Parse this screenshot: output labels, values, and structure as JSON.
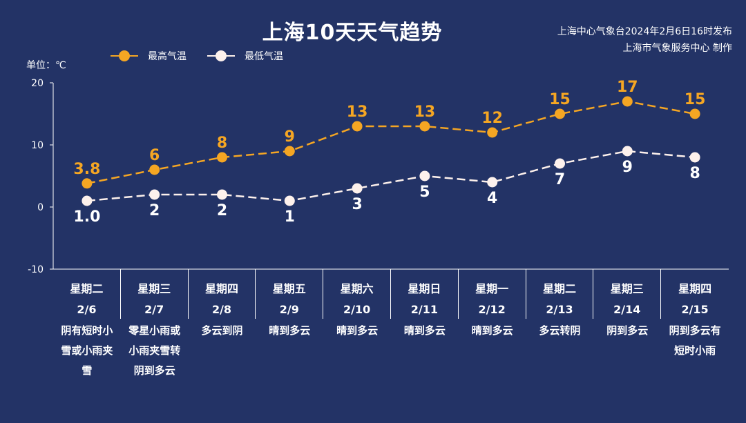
{
  "title": "上海10天天气趋势",
  "source_line1": "上海中心气象台2024年2月6日16时发布",
  "source_line2": "上海市气象服务中心 制作",
  "unit_label": "单位：℃",
  "legend": [
    {
      "name": "最高气温",
      "color": "#f5a623"
    },
    {
      "name": "最低气温",
      "color": "#fdf1ec"
    }
  ],
  "chart_data": {
    "type": "line",
    "title": "上海10天天气趋势",
    "ylabel": "单位：℃",
    "ylim": [
      -10,
      20
    ],
    "yticks": [
      "20",
      "10",
      "0",
      "-10"
    ],
    "categories": [
      "2/6",
      "2/7",
      "2/8",
      "2/9",
      "2/10",
      "2/11",
      "2/12",
      "2/13",
      "2/14",
      "2/15"
    ],
    "series": [
      {
        "name": "最高气温",
        "values": [
          3.8,
          6,
          8,
          9,
          13,
          13,
          12,
          15,
          17,
          15
        ],
        "labels": [
          "3.8",
          "6",
          "8",
          "9",
          "13",
          "13",
          "12",
          "15",
          "17",
          "15"
        ],
        "color": "#f5a623"
      },
      {
        "name": "最低气温",
        "values": [
          1.0,
          2,
          2,
          1,
          3,
          5,
          4,
          7,
          9,
          8
        ],
        "labels": [
          "1.0",
          "2",
          "2",
          "1",
          "3",
          "5",
          "4",
          "7",
          "9",
          "8"
        ],
        "color": "#fdf1ec"
      }
    ],
    "legend_position": "top-left",
    "grid": false
  },
  "days": [
    {
      "weekday": "星期二",
      "date": "2/6",
      "weather": "阴有短时小雪或小雨夹雪"
    },
    {
      "weekday": "星期三",
      "date": "2/7",
      "weather": "零星小雨或小雨夹雪转阴到多云"
    },
    {
      "weekday": "星期四",
      "date": "2/8",
      "weather": "多云到阴"
    },
    {
      "weekday": "星期五",
      "date": "2/9",
      "weather": "晴到多云"
    },
    {
      "weekday": "星期六",
      "date": "2/10",
      "weather": "晴到多云"
    },
    {
      "weekday": "星期日",
      "date": "2/11",
      "weather": "晴到多云"
    },
    {
      "weekday": "星期一",
      "date": "2/12",
      "weather": "晴到多云"
    },
    {
      "weekday": "星期二",
      "date": "2/13",
      "weather": "多云转阴"
    },
    {
      "weekday": "星期三",
      "date": "2/14",
      "weather": "阴到多云"
    },
    {
      "weekday": "星期四",
      "date": "2/15",
      "weather": "阴到多云有短时小雨"
    }
  ]
}
